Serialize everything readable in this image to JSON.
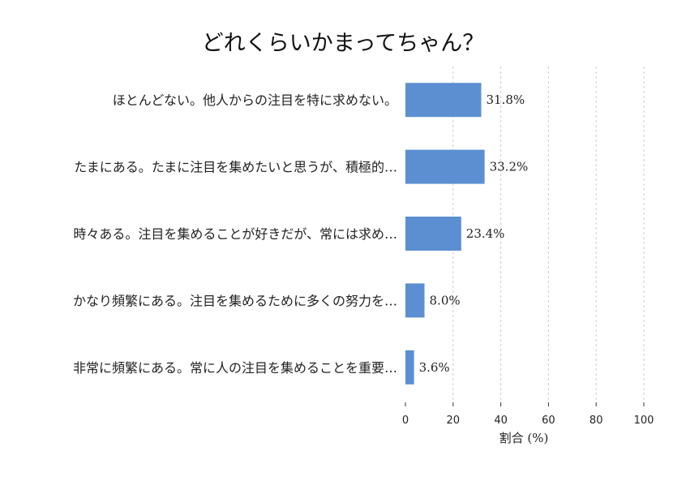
{
  "chart_data": {
    "type": "bar",
    "orientation": "horizontal",
    "title": "どれくらいかまってちゃん？",
    "xlabel": "割合 (%)",
    "ylabel": "",
    "xlim": [
      0,
      100
    ],
    "xticks": [
      0,
      20,
      40,
      60,
      80,
      100
    ],
    "grid": true,
    "legend": "none",
    "bar_color": "#5b8fd1",
    "categories": [
      "ほとんどない。他人からの注目を特に求めない。",
      "たまにある。たまに注目を集めたいと思うが、積極的…",
      "時々ある。注目を集めることが好きだが、常には求め…",
      "かなり頻繁にある。注目を集めるために多くの努力を…",
      "非常に頻繁にある。常に人の注目を集めることを重要…"
    ],
    "values": [
      31.8,
      33.2,
      23.4,
      8.0,
      3.6
    ],
    "value_labels": [
      "31.8%",
      "33.2%",
      "23.4%",
      "8.0%",
      "3.6%"
    ]
  }
}
